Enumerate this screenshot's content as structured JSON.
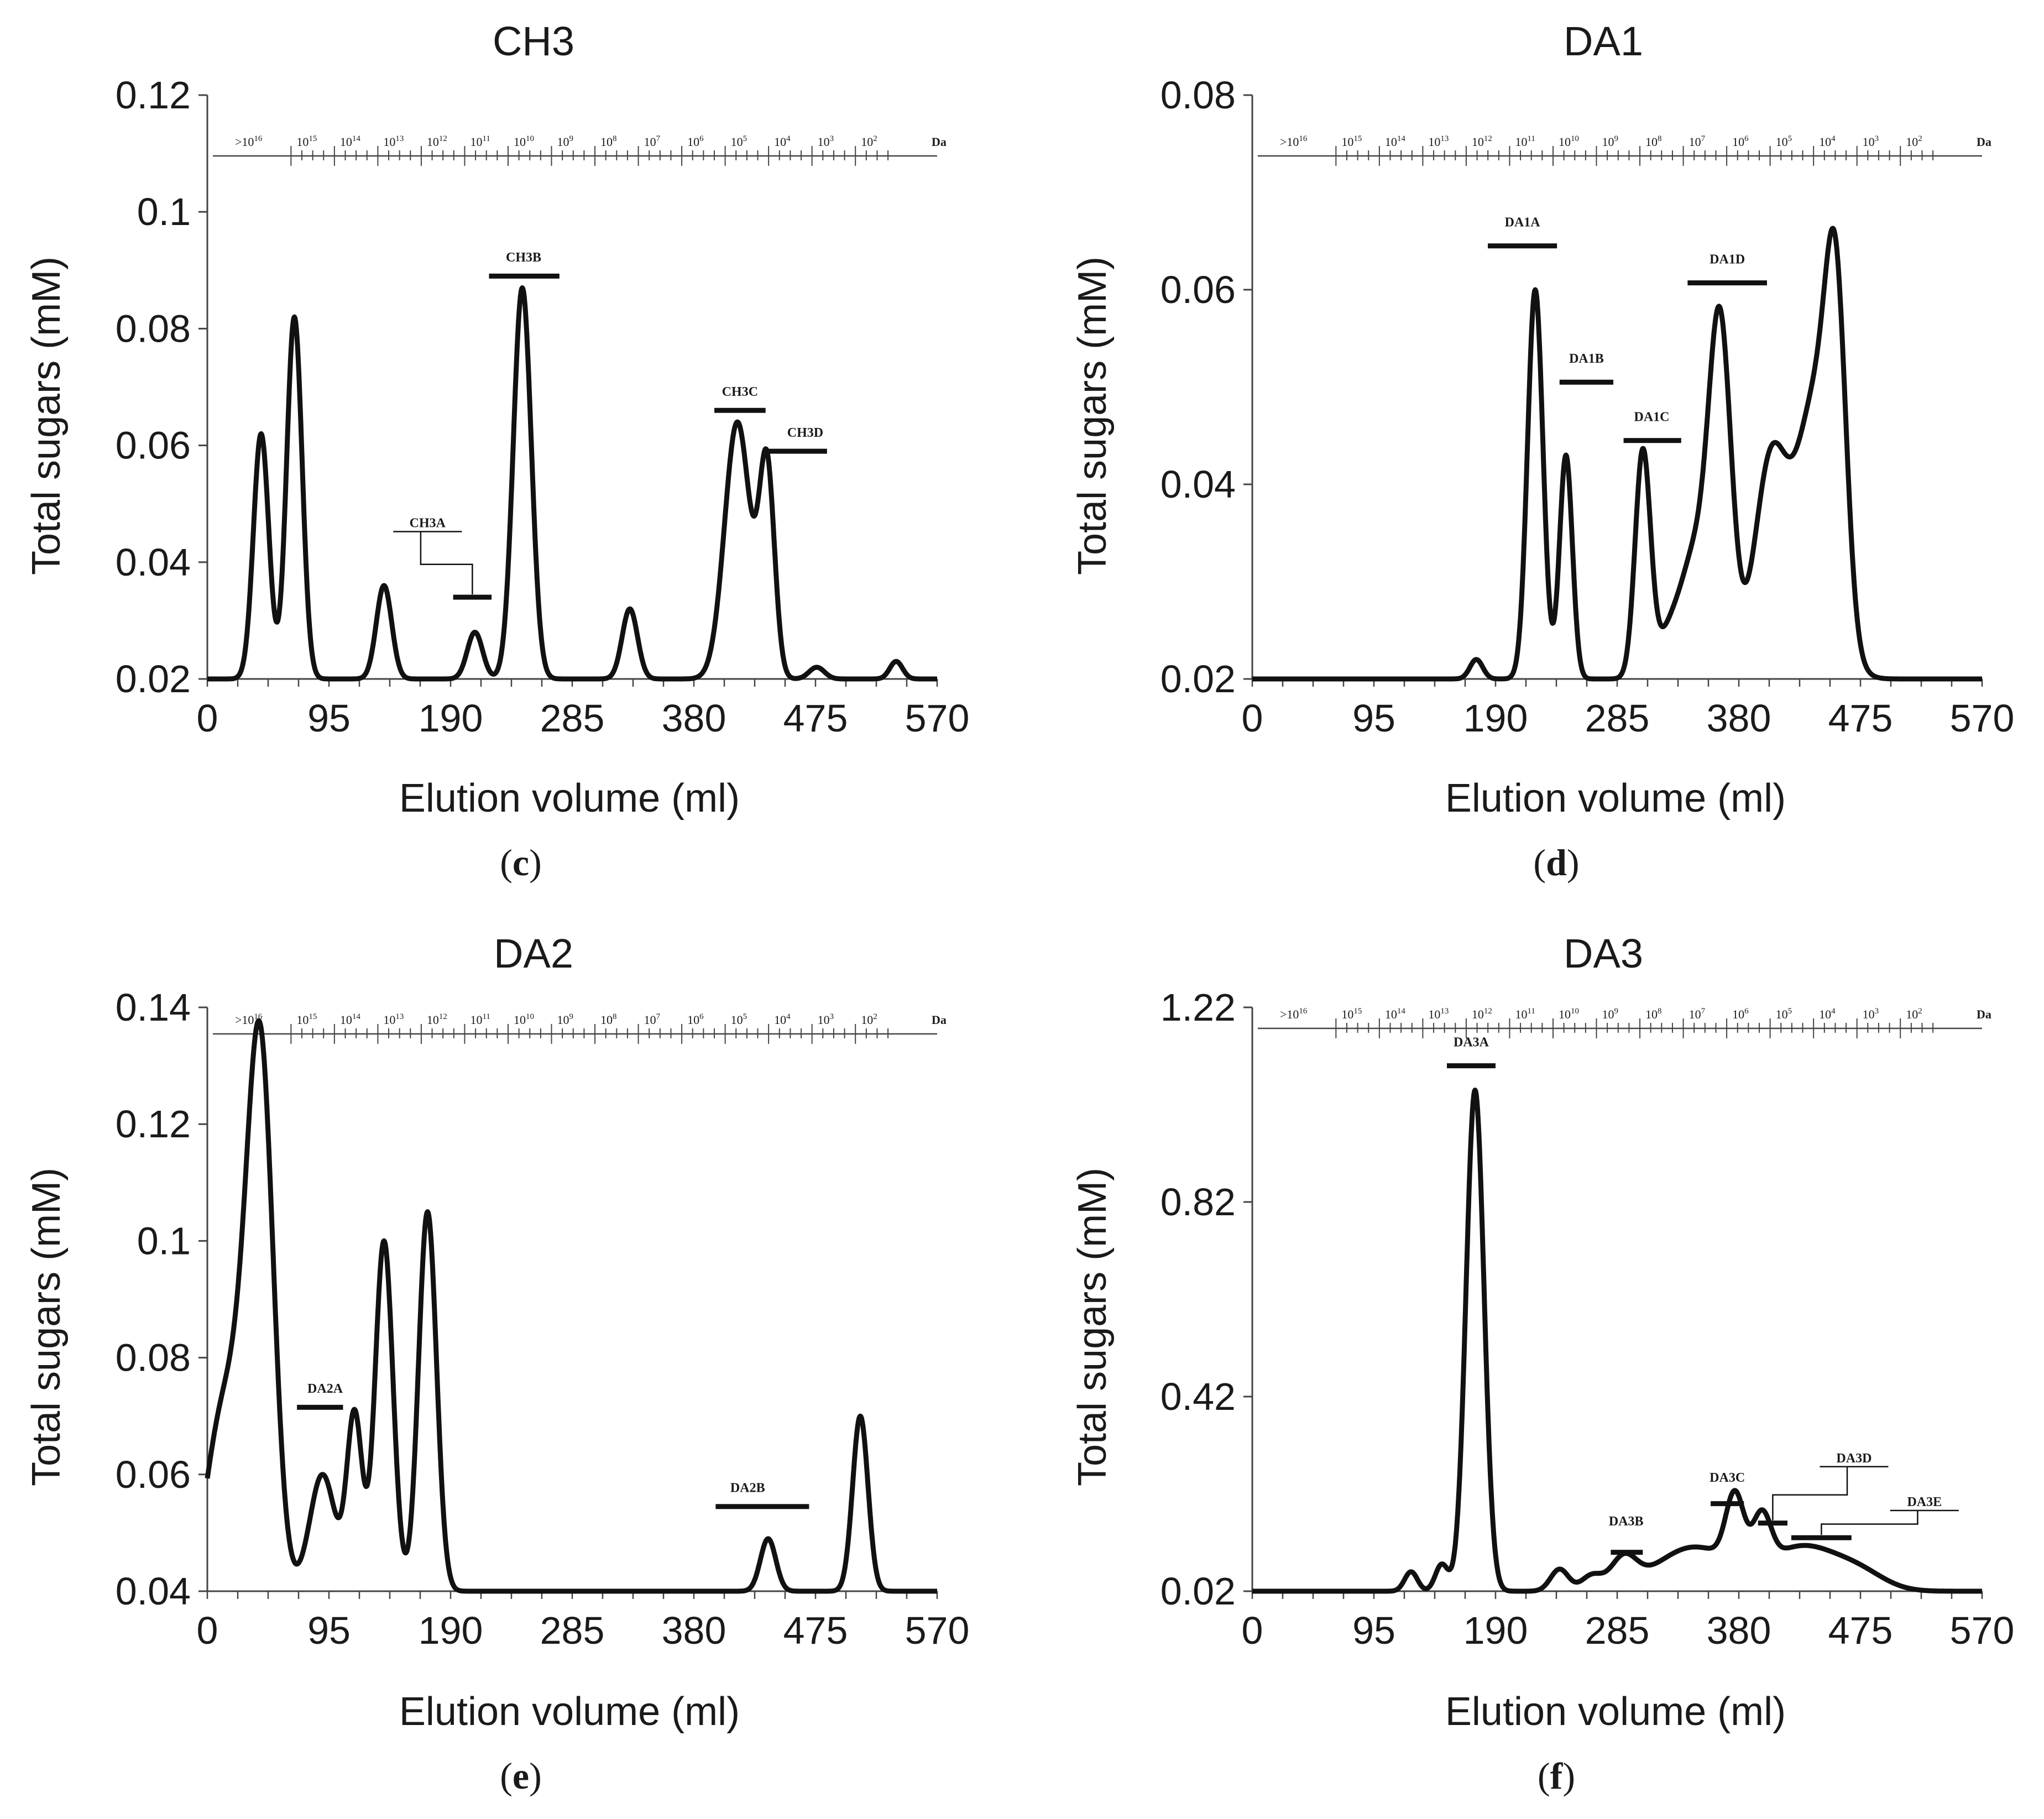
{
  "figure": {
    "colors": {
      "line": "#111111",
      "axis": "#444444",
      "text": "#1a1a1a"
    }
  },
  "chart_data": [
    {
      "id": "c",
      "caption": "c",
      "type": "line",
      "title": "CH3",
      "xlabel": "Elution volume  (ml)",
      "ylabel": "Total sugars (mM)",
      "xlim": [
        0,
        570
      ],
      "ylim": [
        0.02,
        0.12
      ],
      "xticks": [
        0,
        95,
        190,
        285,
        380,
        475,
        570
      ],
      "yticks": [
        0.02,
        0.04,
        0.06,
        0.08,
        0.1,
        0.12
      ],
      "ytick_labels": [
        "0.02",
        "0.04",
        "0.06",
        "0.08",
        "0.1",
        "0.12"
      ],
      "baseline": 0.02,
      "peaks": [
        {
          "x": 42,
          "y": 0.062,
          "w": 6
        },
        {
          "x": 68,
          "y": 0.082,
          "w": 6
        },
        {
          "x": 138,
          "y": 0.036,
          "w": 6
        },
        {
          "x": 209,
          "y": 0.028,
          "w": 6
        },
        {
          "x": 246,
          "y": 0.087,
          "w": 7
        },
        {
          "x": 330,
          "y": 0.032,
          "w": 6
        },
        {
          "x": 414,
          "y": 0.064,
          "w": 10
        },
        {
          "x": 437,
          "y": 0.056,
          "w": 6
        },
        {
          "x": 476,
          "y": 0.022,
          "w": 6
        },
        {
          "x": 538,
          "y": 0.023,
          "w": 5
        }
      ],
      "fractions": [
        {
          "label": "CH3A",
          "x1": 192,
          "x2": 222,
          "y": 0.034,
          "label_x": 172,
          "label_y": 0.046,
          "leader": true
        },
        {
          "label": "CH3B",
          "x1": 220,
          "x2": 275,
          "y": 0.089,
          "label_x": 247,
          "label_y": 0.0915
        },
        {
          "label": "CH3C",
          "x1": 396,
          "x2": 436,
          "y": 0.066,
          "label_x": 416,
          "label_y": 0.0685
        },
        {
          "label": "CH3D",
          "x1": 437,
          "x2": 484,
          "y": 0.059,
          "label_x": 467,
          "label_y": 0.0615
        }
      ]
    },
    {
      "id": "d",
      "caption": "d",
      "type": "line",
      "title": "DA1",
      "xlabel": "Elution volume  (ml)",
      "ylabel": "Total sugars (mM)",
      "xlim": [
        0,
        570
      ],
      "ylim": [
        0.02,
        0.08
      ],
      "xticks": [
        0,
        95,
        190,
        285,
        380,
        475,
        570
      ],
      "yticks": [
        0.02,
        0.04,
        0.06,
        0.08
      ],
      "ytick_labels": [
        "0.02",
        "0.04",
        "0.06",
        "0.08"
      ],
      "baseline": 0.02,
      "peaks": [
        {
          "x": 175,
          "y": 0.022,
          "w": 5
        },
        {
          "x": 221,
          "y": 0.06,
          "w": 6
        },
        {
          "x": 245,
          "y": 0.043,
          "w": 5
        },
        {
          "x": 305,
          "y": 0.043,
          "w": 6
        },
        {
          "x": 330,
          "y": 0.026,
          "w": 12
        },
        {
          "x": 346,
          "y": 0.029,
          "w": 9
        },
        {
          "x": 365,
          "y": 0.057,
          "w": 9
        },
        {
          "x": 405,
          "y": 0.042,
          "w": 13
        },
        {
          "x": 440,
          "y": 0.048,
          "w": 15
        },
        {
          "x": 456,
          "y": 0.049,
          "w": 8
        }
      ],
      "fractions": [
        {
          "label": "DA1A",
          "x1": 184,
          "x2": 238,
          "y": 0.0645,
          "label_x": 211,
          "label_y": 0.0665
        },
        {
          "label": "DA1B",
          "x1": 240,
          "x2": 282,
          "y": 0.0505,
          "label_x": 261,
          "label_y": 0.0525
        },
        {
          "label": "DA1C",
          "x1": 290,
          "x2": 335,
          "y": 0.0445,
          "label_x": 312,
          "label_y": 0.0465
        },
        {
          "label": "DA1D",
          "x1": 340,
          "x2": 402,
          "y": 0.0607,
          "label_x": 371,
          "label_y": 0.0627
        }
      ]
    },
    {
      "id": "e",
      "caption": "e",
      "type": "line",
      "title": "DA2",
      "xlabel": "Elution volume  (ml)",
      "ylabel": "Total sugars (mM)",
      "xlim": [
        0,
        570
      ],
      "ylim": [
        0.04,
        0.14
      ],
      "xticks": [
        0,
        95,
        190,
        285,
        380,
        475,
        570
      ],
      "yticks": [
        0.04,
        0.06,
        0.08,
        0.1,
        0.12,
        0.14
      ],
      "ytick_labels": [
        "0.04",
        "0.06",
        "0.08",
        "0.1",
        "0.12",
        "0.14"
      ],
      "baseline": 0.04,
      "peaks": [
        {
          "x": 5,
          "y": 0.052,
          "w": 10
        },
        {
          "x": 25,
          "y": 0.075,
          "w": 15
        },
        {
          "x": 42,
          "y": 0.118,
          "w": 10
        },
        {
          "x": 90,
          "y": 0.06,
          "w": 10
        },
        {
          "x": 115,
          "y": 0.07,
          "w": 6
        },
        {
          "x": 138,
          "y": 0.1,
          "w": 7
        },
        {
          "x": 172,
          "y": 0.105,
          "w": 7
        },
        {
          "x": 438,
          "y": 0.049,
          "w": 6
        },
        {
          "x": 510,
          "y": 0.07,
          "w": 6
        }
      ],
      "fractions": [
        {
          "label": "DA2A",
          "x1": 70,
          "x2": 106,
          "y": 0.0715,
          "label_x": 92,
          "label_y": 0.074
        },
        {
          "label": "DA2B",
          "x1": 397,
          "x2": 470,
          "y": 0.0545,
          "label_x": 422,
          "label_y": 0.057
        }
      ]
    },
    {
      "id": "f",
      "caption": "f",
      "type": "line",
      "title": "DA3",
      "xlabel": "Elution volume  (ml)",
      "ylabel": "Total sugars (mM)",
      "xlim": [
        0,
        570
      ],
      "ylim": [
        0.02,
        1.22
      ],
      "xticks": [
        0,
        95,
        190,
        285,
        380,
        475,
        570
      ],
      "yticks": [
        0.02,
        0.42,
        0.82,
        1.22
      ],
      "ytick_labels": [
        "0.02",
        "0.42",
        "0.82",
        "1.22"
      ],
      "baseline": 0.02,
      "peaks": [
        {
          "x": 124,
          "y": 0.06,
          "w": 5
        },
        {
          "x": 148,
          "y": 0.075,
          "w": 5
        },
        {
          "x": 174,
          "y": 1.05,
          "w": 7
        },
        {
          "x": 240,
          "y": 0.065,
          "w": 7
        },
        {
          "x": 265,
          "y": 0.05,
          "w": 8
        },
        {
          "x": 290,
          "y": 0.08,
          "w": 10
        },
        {
          "x": 345,
          "y": 0.11,
          "w": 30
        },
        {
          "x": 377,
          "y": 0.16,
          "w": 7
        },
        {
          "x": 398,
          "y": 0.12,
          "w": 7
        },
        {
          "x": 430,
          "y": 0.11,
          "w": 28
        },
        {
          "x": 475,
          "y": 0.05,
          "w": 20
        }
      ],
      "fractions": [
        {
          "label": "DA3A",
          "x1": 152,
          "x2": 190,
          "y": 1.1,
          "label_x": 171,
          "label_y": 1.14
        },
        {
          "label": "DA3B",
          "x1": 280,
          "x2": 305,
          "y": 0.1,
          "label_x": 292,
          "label_y": 0.155
        },
        {
          "label": "DA3C",
          "x1": 358,
          "x2": 384,
          "y": 0.2,
          "label_x": 371,
          "label_y": 0.245
        },
        {
          "label": "DA3D",
          "x1": 395,
          "x2": 418,
          "y": 0.16,
          "label_x": 470,
          "label_y": 0.285,
          "leader": true
        },
        {
          "label": "DA3E",
          "x1": 421,
          "x2": 468,
          "y": 0.13,
          "label_x": 525,
          "label_y": 0.195,
          "leader": true
        }
      ]
    }
  ],
  "mw_scale": {
    "suffix": "Da",
    "labels": [
      ">10^16",
      "10^15",
      "10^14",
      "10^13",
      "10^12",
      "10^11",
      "10^10",
      "10^9",
      "10^8",
      "10^7",
      "10^6",
      "10^5",
      "10^4",
      "10^3",
      "10^2"
    ]
  }
}
